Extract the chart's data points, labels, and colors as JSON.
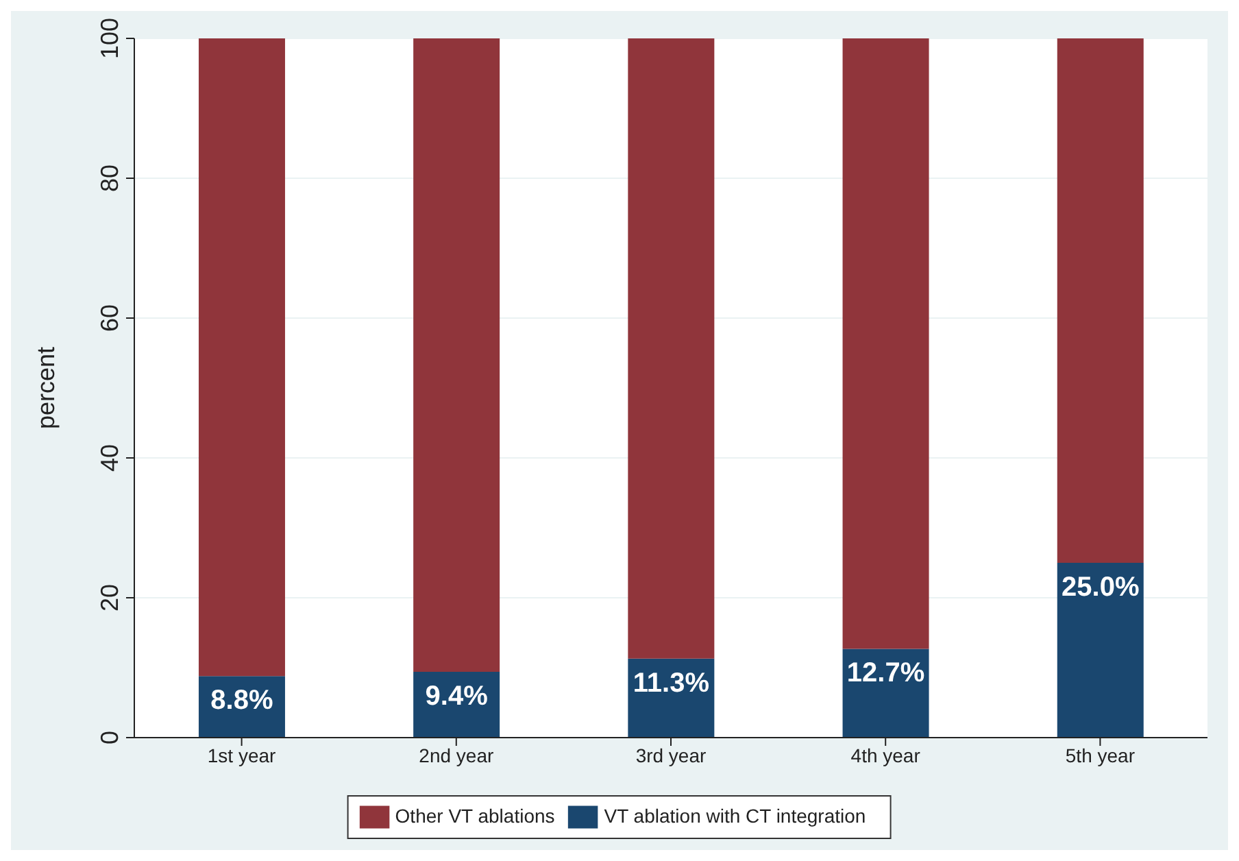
{
  "chart_data": {
    "type": "bar",
    "stacked": true,
    "ylabel": "percent",
    "categories": [
      "1st year",
      "2nd year",
      "3rd year",
      "4th year",
      "5th year"
    ],
    "series": [
      {
        "name": "VT ablation with CT integration",
        "color": "#1a476f",
        "values": [
          8.8,
          9.4,
          11.3,
          12.7,
          25.0
        ],
        "value_labels": [
          "8.8%",
          "9.4%",
          "11.3%",
          "12.7%",
          "25.0%"
        ]
      },
      {
        "name": "Other VT ablations",
        "color": "#90353b",
        "values": [
          91.2,
          90.6,
          88.7,
          87.3,
          75.0
        ]
      }
    ],
    "ylim": [
      0,
      100
    ],
    "yticks": [
      0,
      20,
      40,
      60,
      80,
      100
    ],
    "grid": "y",
    "legend": "bottom"
  }
}
